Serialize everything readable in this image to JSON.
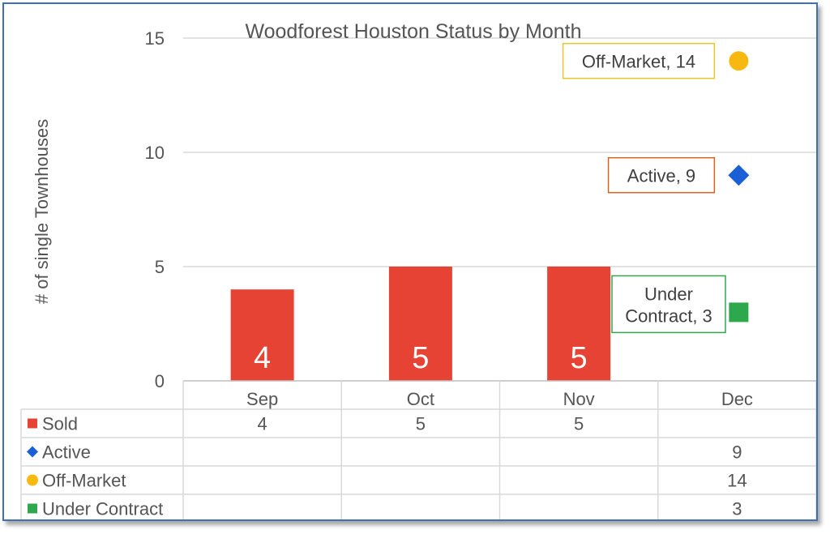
{
  "chart_data": {
    "type": "bar",
    "title": "Woodforest Houston Status by Month",
    "xlabel": "",
    "ylabel": "# of single Townhouses",
    "categories": [
      "Sep",
      "Oct",
      "Nov",
      "Dec"
    ],
    "ylim": [
      0,
      15
    ],
    "yticks": [
      "0",
      "5",
      "10",
      "15"
    ],
    "grid": true,
    "series": [
      {
        "name": "Sold",
        "marker": "square",
        "color": "#e64335",
        "render": "bar",
        "values": [
          4,
          5,
          5,
          null
        ],
        "table_values": [
          "4",
          "5",
          "5",
          ""
        ]
      },
      {
        "name": "Active",
        "marker": "diamond",
        "color": "#1a5fd6",
        "render": "point",
        "values": [
          null,
          null,
          null,
          9
        ],
        "table_values": [
          "",
          "",
          "",
          "9"
        ]
      },
      {
        "name": "Off-Market",
        "marker": "circle",
        "color": "#f7b90f",
        "render": "point",
        "values": [
          null,
          null,
          null,
          14
        ],
        "table_values": [
          "",
          "",
          "",
          "14"
        ]
      },
      {
        "name": "Under Contract",
        "marker": "square",
        "color": "#2ea84d",
        "render": "point",
        "values": [
          null,
          null,
          null,
          3
        ],
        "table_values": [
          "",
          "",
          "",
          "3"
        ]
      }
    ],
    "bar_labels": [
      "4",
      "5",
      "5"
    ],
    "callouts": [
      {
        "series": "Off-Market",
        "lines": [
          "Off-Market, 14"
        ],
        "border": "#e9c52c"
      },
      {
        "series": "Active",
        "lines": [
          "Active, 9"
        ],
        "border": "#d9621f"
      },
      {
        "series": "Under Contract",
        "lines": [
          "Under",
          "Contract, 3"
        ],
        "border": "#2ea84d"
      }
    ],
    "legend": "data-table"
  }
}
